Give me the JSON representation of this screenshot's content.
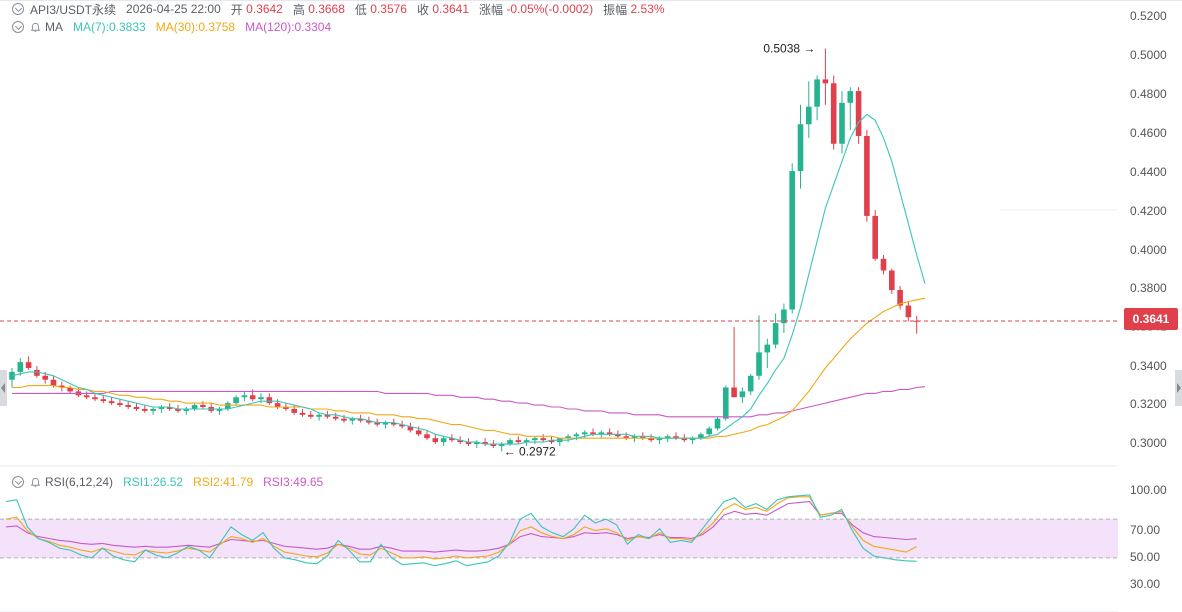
{
  "header": {
    "symbol": "API3/USDT永续",
    "datetime": "2026-04-25 22:00",
    "open_label": "开",
    "open_value": "0.3642",
    "high_label": "高",
    "high_value": "0.3668",
    "low_label": "低",
    "low_value": "0.3576",
    "close_label": "收",
    "close_value": "0.3641",
    "change_label": "涨幅",
    "change_value": "-0.05%(-0.0002)",
    "amplitude_label": "振幅",
    "amplitude_value": "2.53%"
  },
  "ma_legend": {
    "label": "MA",
    "ma7": "MA(7):0.3833",
    "ma30": "MA(30):0.3758",
    "ma120": "MA(120):0.3304"
  },
  "rsi_legend": {
    "label": "RSI(6,12,24)",
    "rsi1": "RSI1:26.52",
    "rsi2": "RSI2:41.79",
    "rsi3": "RSI3:49.65"
  },
  "price_axis": [
    "0.5200",
    "0.5000",
    "0.4800",
    "0.4600",
    "0.4400",
    "0.4200",
    "0.4000",
    "0.3800",
    "0.3641",
    "0.3400",
    "0.3200",
    "0.3000"
  ],
  "last_price": "0.3641",
  "annotations": {
    "max_label": "0.5038",
    "min_label": "0.2972"
  },
  "rsi_axis": [
    "100.00",
    "70.00",
    "50.00",
    "30.00"
  ],
  "colors": {
    "up": "#26b38f",
    "down": "#e0404c",
    "ma7": "#3cc4b8",
    "ma30": "#f0a818",
    "ma120": "#c85ac8",
    "rsi1": "#3cc4b8",
    "rsi2": "#f0a818",
    "rsi3": "#c85ac8",
    "rsi_band": "#f3e2fa"
  },
  "chart_data": {
    "type": "candlestick",
    "price_range": [
      0.29,
      0.525
    ],
    "candles": [
      [
        0.334,
        0.34,
        0.33,
        0.338
      ],
      [
        0.338,
        0.345,
        0.336,
        0.343
      ],
      [
        0.343,
        0.346,
        0.339,
        0.34
      ],
      [
        0.339,
        0.341,
        0.335,
        0.336
      ],
      [
        0.336,
        0.338,
        0.332,
        0.334
      ],
      [
        0.334,
        0.336,
        0.33,
        0.331
      ],
      [
        0.331,
        0.333,
        0.328,
        0.33
      ],
      [
        0.33,
        0.331,
        0.327,
        0.328
      ],
      [
        0.328,
        0.33,
        0.325,
        0.326
      ],
      [
        0.326,
        0.328,
        0.324,
        0.325
      ],
      [
        0.325,
        0.327,
        0.323,
        0.324
      ],
      [
        0.324,
        0.326,
        0.322,
        0.323
      ],
      [
        0.323,
        0.325,
        0.321,
        0.322
      ],
      [
        0.322,
        0.324,
        0.32,
        0.321
      ],
      [
        0.321,
        0.323,
        0.319,
        0.32
      ],
      [
        0.32,
        0.322,
        0.318,
        0.319
      ],
      [
        0.319,
        0.321,
        0.317,
        0.318
      ],
      [
        0.318,
        0.32,
        0.316,
        0.319
      ],
      [
        0.319,
        0.321,
        0.317,
        0.32
      ],
      [
        0.32,
        0.322,
        0.318,
        0.319
      ],
      [
        0.319,
        0.321,
        0.317,
        0.318
      ],
      [
        0.318,
        0.32,
        0.316,
        0.319
      ],
      [
        0.319,
        0.322,
        0.318,
        0.321
      ],
      [
        0.321,
        0.323,
        0.319,
        0.32
      ],
      [
        0.32,
        0.322,
        0.317,
        0.318
      ],
      [
        0.318,
        0.32,
        0.316,
        0.319
      ],
      [
        0.319,
        0.323,
        0.318,
        0.322
      ],
      [
        0.322,
        0.326,
        0.321,
        0.325
      ],
      [
        0.325,
        0.328,
        0.323,
        0.326
      ],
      [
        0.326,
        0.329,
        0.323,
        0.324
      ],
      [
        0.324,
        0.327,
        0.322,
        0.325
      ],
      [
        0.325,
        0.327,
        0.321,
        0.322
      ],
      [
        0.322,
        0.324,
        0.319,
        0.32
      ],
      [
        0.32,
        0.322,
        0.318,
        0.319
      ],
      [
        0.319,
        0.321,
        0.316,
        0.317
      ],
      [
        0.317,
        0.319,
        0.315,
        0.316
      ],
      [
        0.316,
        0.318,
        0.314,
        0.315
      ],
      [
        0.315,
        0.317,
        0.313,
        0.316
      ],
      [
        0.316,
        0.318,
        0.314,
        0.315
      ],
      [
        0.315,
        0.317,
        0.313,
        0.314
      ],
      [
        0.314,
        0.316,
        0.312,
        0.313
      ],
      [
        0.313,
        0.315,
        0.311,
        0.314
      ],
      [
        0.314,
        0.316,
        0.312,
        0.313
      ],
      [
        0.313,
        0.315,
        0.311,
        0.312
      ],
      [
        0.312,
        0.314,
        0.31,
        0.311
      ],
      [
        0.311,
        0.313,
        0.309,
        0.312
      ],
      [
        0.312,
        0.314,
        0.31,
        0.311
      ],
      [
        0.311,
        0.313,
        0.309,
        0.31
      ],
      [
        0.31,
        0.312,
        0.307,
        0.308
      ],
      [
        0.308,
        0.31,
        0.305,
        0.306
      ],
      [
        0.306,
        0.308,
        0.303,
        0.304
      ],
      [
        0.304,
        0.306,
        0.301,
        0.302
      ],
      [
        0.302,
        0.305,
        0.3,
        0.304
      ],
      [
        0.304,
        0.306,
        0.302,
        0.303
      ],
      [
        0.303,
        0.305,
        0.301,
        0.302
      ],
      [
        0.302,
        0.304,
        0.3,
        0.301
      ],
      [
        0.301,
        0.303,
        0.299,
        0.302
      ],
      [
        0.302,
        0.304,
        0.3,
        0.301
      ],
      [
        0.301,
        0.303,
        0.299,
        0.3
      ],
      [
        0.3,
        0.302,
        0.2972,
        0.301
      ],
      [
        0.301,
        0.304,
        0.3,
        0.303
      ],
      [
        0.303,
        0.305,
        0.301,
        0.302
      ],
      [
        0.302,
        0.304,
        0.3,
        0.303
      ],
      [
        0.303,
        0.305,
        0.301,
        0.304
      ],
      [
        0.304,
        0.306,
        0.302,
        0.303
      ],
      [
        0.303,
        0.305,
        0.301,
        0.302
      ],
      [
        0.302,
        0.304,
        0.3,
        0.304
      ],
      [
        0.304,
        0.306,
        0.302,
        0.305
      ],
      [
        0.305,
        0.307,
        0.303,
        0.306
      ],
      [
        0.306,
        0.308,
        0.304,
        0.307
      ],
      [
        0.307,
        0.309,
        0.305,
        0.306
      ],
      [
        0.306,
        0.308,
        0.304,
        0.307
      ],
      [
        0.307,
        0.309,
        0.305,
        0.306
      ],
      [
        0.306,
        0.308,
        0.304,
        0.305
      ],
      [
        0.305,
        0.307,
        0.303,
        0.304
      ],
      [
        0.304,
        0.306,
        0.302,
        0.305
      ],
      [
        0.305,
        0.307,
        0.303,
        0.304
      ],
      [
        0.304,
        0.306,
        0.302,
        0.303
      ],
      [
        0.303,
        0.305,
        0.301,
        0.304
      ],
      [
        0.304,
        0.306,
        0.302,
        0.305
      ],
      [
        0.305,
        0.307,
        0.303,
        0.304
      ],
      [
        0.304,
        0.306,
        0.302,
        0.303
      ],
      [
        0.303,
        0.305,
        0.301,
        0.304
      ],
      [
        0.304,
        0.307,
        0.303,
        0.306
      ],
      [
        0.306,
        0.31,
        0.305,
        0.309
      ],
      [
        0.309,
        0.315,
        0.308,
        0.314
      ],
      [
        0.314,
        0.331,
        0.313,
        0.33
      ],
      [
        0.33,
        0.361,
        0.326,
        0.325
      ],
      [
        0.325,
        0.33,
        0.322,
        0.328
      ],
      [
        0.328,
        0.337,
        0.326,
        0.336
      ],
      [
        0.336,
        0.367,
        0.334,
        0.348
      ],
      [
        0.348,
        0.355,
        0.34,
        0.352
      ],
      [
        0.352,
        0.368,
        0.35,
        0.363
      ],
      [
        0.363,
        0.373,
        0.358,
        0.37
      ],
      [
        0.37,
        0.445,
        0.368,
        0.441
      ],
      [
        0.441,
        0.475,
        0.432,
        0.465
      ],
      [
        0.465,
        0.487,
        0.458,
        0.474
      ],
      [
        0.474,
        0.49,
        0.467,
        0.488
      ],
      [
        0.488,
        0.5038,
        0.475,
        0.486
      ],
      [
        0.486,
        0.49,
        0.452,
        0.455
      ],
      [
        0.455,
        0.482,
        0.45,
        0.476
      ],
      [
        0.476,
        0.484,
        0.462,
        0.482
      ],
      [
        0.482,
        0.484,
        0.455,
        0.459
      ],
      [
        0.459,
        0.462,
        0.415,
        0.418
      ],
      [
        0.418,
        0.421,
        0.395,
        0.396
      ],
      [
        0.396,
        0.398,
        0.388,
        0.39
      ],
      [
        0.39,
        0.391,
        0.378,
        0.38
      ],
      [
        0.38,
        0.382,
        0.37,
        0.372
      ],
      [
        0.372,
        0.374,
        0.364,
        0.366
      ],
      [
        0.3642,
        0.3668,
        0.3576,
        0.3641
      ]
    ],
    "ma7": [
      0.336,
      0.337,
      0.338,
      0.338,
      0.337,
      0.336,
      0.334,
      0.332,
      0.33,
      0.329,
      0.327,
      0.326,
      0.325,
      0.324,
      0.323,
      0.322,
      0.321,
      0.32,
      0.32,
      0.32,
      0.319,
      0.319,
      0.319,
      0.319,
      0.319,
      0.319,
      0.319,
      0.32,
      0.321,
      0.322,
      0.323,
      0.323,
      0.323,
      0.322,
      0.321,
      0.32,
      0.319,
      0.317,
      0.316,
      0.316,
      0.315,
      0.314,
      0.314,
      0.313,
      0.312,
      0.312,
      0.312,
      0.311,
      0.31,
      0.309,
      0.308,
      0.306,
      0.305,
      0.304,
      0.303,
      0.302,
      0.302,
      0.301,
      0.301,
      0.301,
      0.301,
      0.301,
      0.302,
      0.302,
      0.302,
      0.303,
      0.303,
      0.303,
      0.304,
      0.305,
      0.306,
      0.306,
      0.306,
      0.306,
      0.306,
      0.305,
      0.305,
      0.305,
      0.304,
      0.304,
      0.304,
      0.304,
      0.304,
      0.304,
      0.305,
      0.306,
      0.309,
      0.312,
      0.315,
      0.319,
      0.326,
      0.332,
      0.339,
      0.345,
      0.357,
      0.371,
      0.388,
      0.405,
      0.422,
      0.434,
      0.446,
      0.458,
      0.466,
      0.47,
      0.467,
      0.458,
      0.446,
      0.43,
      0.414,
      0.398,
      0.3833
    ],
    "ma30": [
      0.33,
      0.33,
      0.331,
      0.331,
      0.331,
      0.331,
      0.33,
      0.33,
      0.329,
      0.329,
      0.328,
      0.328,
      0.327,
      0.326,
      0.326,
      0.325,
      0.325,
      0.324,
      0.324,
      0.323,
      0.323,
      0.322,
      0.322,
      0.322,
      0.322,
      0.321,
      0.321,
      0.321,
      0.321,
      0.321,
      0.321,
      0.32,
      0.32,
      0.32,
      0.32,
      0.32,
      0.319,
      0.319,
      0.319,
      0.318,
      0.318,
      0.317,
      0.317,
      0.317,
      0.316,
      0.316,
      0.316,
      0.315,
      0.315,
      0.314,
      0.314,
      0.313,
      0.312,
      0.311,
      0.311,
      0.31,
      0.309,
      0.308,
      0.308,
      0.307,
      0.306,
      0.306,
      0.305,
      0.305,
      0.305,
      0.305,
      0.304,
      0.304,
      0.304,
      0.304,
      0.304,
      0.304,
      0.304,
      0.304,
      0.304,
      0.304,
      0.304,
      0.304,
      0.304,
      0.304,
      0.304,
      0.304,
      0.304,
      0.304,
      0.304,
      0.305,
      0.305,
      0.306,
      0.307,
      0.308,
      0.31,
      0.311,
      0.313,
      0.315,
      0.318,
      0.323,
      0.328,
      0.334,
      0.34,
      0.345,
      0.35,
      0.355,
      0.359,
      0.363,
      0.366,
      0.369,
      0.371,
      0.373,
      0.374,
      0.375,
      0.3758
    ],
    "ma120": [
      0.327,
      0.327,
      0.327,
      0.327,
      0.327,
      0.327,
      0.327,
      0.327,
      0.327,
      0.327,
      0.327,
      0.327,
      0.328,
      0.328,
      0.328,
      0.328,
      0.328,
      0.328,
      0.328,
      0.328,
      0.328,
      0.328,
      0.328,
      0.328,
      0.328,
      0.328,
      0.328,
      0.328,
      0.328,
      0.328,
      0.328,
      0.328,
      0.328,
      0.328,
      0.328,
      0.328,
      0.328,
      0.328,
      0.328,
      0.328,
      0.328,
      0.328,
      0.328,
      0.328,
      0.328,
      0.327,
      0.327,
      0.327,
      0.327,
      0.327,
      0.327,
      0.326,
      0.326,
      0.326,
      0.325,
      0.325,
      0.325,
      0.324,
      0.324,
      0.323,
      0.323,
      0.322,
      0.322,
      0.321,
      0.321,
      0.32,
      0.32,
      0.319,
      0.319,
      0.318,
      0.318,
      0.318,
      0.317,
      0.317,
      0.317,
      0.316,
      0.316,
      0.316,
      0.316,
      0.315,
      0.315,
      0.315,
      0.315,
      0.315,
      0.315,
      0.315,
      0.315,
      0.315,
      0.315,
      0.315,
      0.316,
      0.316,
      0.317,
      0.317,
      0.318,
      0.319,
      0.32,
      0.321,
      0.322,
      0.323,
      0.324,
      0.325,
      0.326,
      0.327,
      0.327,
      0.328,
      0.328,
      0.329,
      0.329,
      0.33,
      0.3304
    ],
    "rsi_range": [
      20,
      100
    ],
    "rsi1": [
      88,
      90,
      62,
      50,
      46,
      40,
      38,
      33,
      30,
      40,
      32,
      28,
      26,
      38,
      33,
      30,
      35,
      42,
      38,
      30,
      46,
      62,
      54,
      48,
      56,
      40,
      30,
      28,
      25,
      24,
      32,
      48,
      38,
      26,
      26,
      44,
      30,
      23,
      24,
      25,
      22,
      24,
      27,
      22,
      24,
      26,
      32,
      46,
      70,
      76,
      62,
      56,
      52,
      60,
      74,
      66,
      70,
      64,
      44,
      54,
      50,
      60,
      46,
      48,
      46,
      60,
      74,
      88,
      92,
      82,
      86,
      80,
      90,
      93,
      94,
      95,
      72,
      74,
      80,
      58,
      40,
      32,
      30,
      28,
      27,
      26.52
    ],
    "rsi2": [
      70,
      72,
      58,
      50,
      47,
      43,
      41,
      38,
      36,
      40,
      37,
      34,
      33,
      38,
      36,
      35,
      37,
      40,
      38,
      36,
      44,
      52,
      50,
      46,
      50,
      42,
      36,
      34,
      32,
      31,
      35,
      44,
      40,
      34,
      33,
      40,
      35,
      30,
      30,
      31,
      29,
      30,
      32,
      30,
      31,
      32,
      36,
      44,
      58,
      62,
      56,
      52,
      50,
      54,
      62,
      58,
      60,
      56,
      48,
      52,
      50,
      56,
      50,
      50,
      48,
      56,
      66,
      80,
      86,
      80,
      82,
      78,
      86,
      92,
      93,
      93,
      74,
      76,
      78,
      62,
      48,
      42,
      40,
      38,
      36,
      41.79
    ],
    "rsi3": [
      62,
      63,
      56,
      52,
      50,
      48,
      47,
      45,
      44,
      45,
      43,
      42,
      41,
      42,
      41,
      41,
      42,
      43,
      42,
      41,
      45,
      49,
      48,
      47,
      48,
      45,
      42,
      41,
      40,
      39,
      40,
      44,
      42,
      39,
      39,
      42,
      40,
      37,
      37,
      37,
      36,
      37,
      38,
      37,
      37,
      38,
      40,
      44,
      52,
      55,
      52,
      51,
      50,
      52,
      56,
      55,
      56,
      54,
      50,
      52,
      51,
      54,
      51,
      51,
      50,
      54,
      62,
      74,
      78,
      75,
      76,
      74,
      80,
      86,
      87,
      88,
      74,
      76,
      76,
      64,
      56,
      52,
      51,
      50,
      49,
      49.65
    ]
  }
}
